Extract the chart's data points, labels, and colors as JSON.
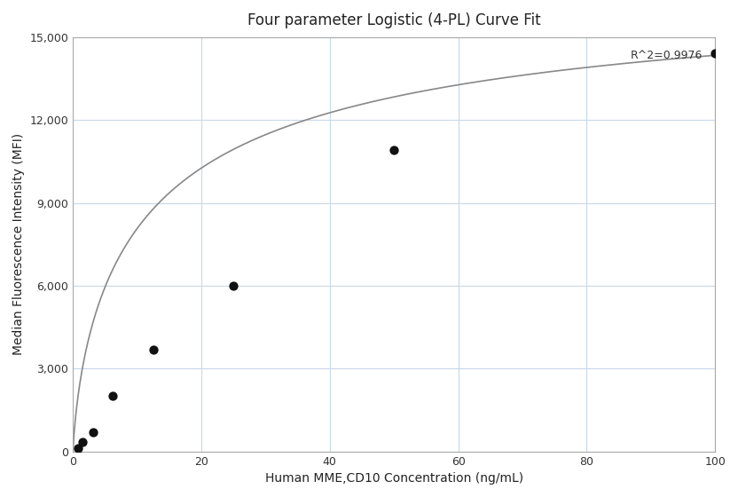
{
  "title": "Four parameter Logistic (4-PL) Curve Fit",
  "xlabel": "Human MME,CD10 Concentration (ng/mL)",
  "ylabel": "Median Fluorescence Intensity (MFI)",
  "scatter_x": [
    0.78,
    1.56,
    3.125,
    6.25,
    12.5,
    25,
    50,
    100
  ],
  "scatter_y": [
    120,
    350,
    700,
    2000,
    3700,
    6000,
    10900,
    14400
  ],
  "r_squared": "R^2=0.9976",
  "xlim": [
    0,
    100
  ],
  "ylim": [
    0,
    15000
  ],
  "xticks": [
    0,
    20,
    40,
    60,
    80,
    100
  ],
  "yticks": [
    0,
    3000,
    6000,
    9000,
    12000,
    15000
  ],
  "curve_color": "#888888",
  "scatter_color": "#111111",
  "background_color": "#ffffff",
  "grid_color": "#c8d8e8",
  "4pl_A": -200,
  "4pl_B": 0.72,
  "4pl_C": 12.0,
  "4pl_D": 17500
}
